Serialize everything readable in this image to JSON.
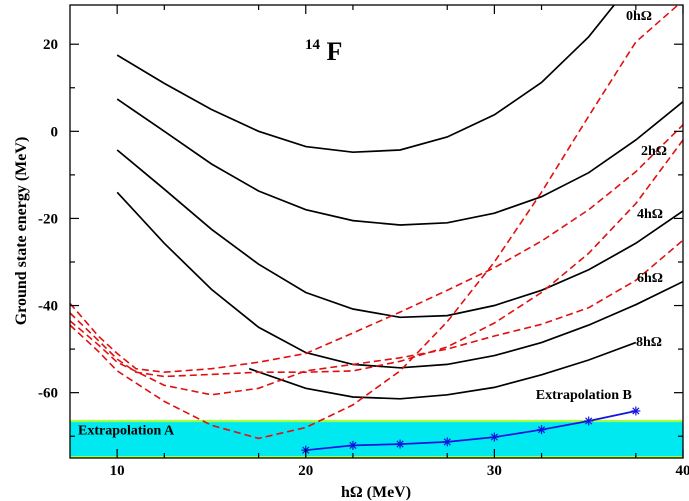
{
  "chart_data": {
    "type": "line",
    "title": "",
    "nucleus": {
      "mass_number": "14",
      "symbol": "F"
    },
    "xlabel": "hΩ (MeV)",
    "ylabel": "Ground state energy (MeV)",
    "xlim": [
      7.5,
      40
    ],
    "ylim": [
      -75,
      29
    ],
    "x_ticks": [
      10,
      20,
      30,
      40
    ],
    "y_ticks": [
      -60,
      -40,
      -20,
      0,
      20
    ],
    "tick_labels_x": [
      "10",
      "20",
      "30",
      "40"
    ],
    "tick_labels_y": [
      "-60",
      "-40",
      "-20",
      "0",
      "20"
    ],
    "band": {
      "label": "Extrapolation A",
      "y_low": -74.8,
      "y_high": -66.5,
      "fill_color": "#00e8f0",
      "edge_color": "#a0ff40"
    },
    "series": [
      {
        "name": "0hΩ",
        "style": "solid",
        "color": "#000000",
        "x": [
          10,
          12.5,
          15,
          17.5,
          20,
          22.5,
          25,
          27.5,
          30,
          32.5,
          35,
          37.5
        ],
        "y": [
          17.5,
          11,
          5,
          0,
          -3.5,
          -4.8,
          -4.3,
          -1.3,
          3.8,
          11.2,
          21.7,
          35.2
        ]
      },
      {
        "name": "2hΩ",
        "style": "solid",
        "color": "#000000",
        "x": [
          10,
          12.5,
          15,
          17.5,
          20,
          22.5,
          25,
          27.5,
          30,
          32.5,
          35,
          37.5,
          40
        ],
        "y": [
          7.4,
          0,
          -7.5,
          -13.7,
          -18,
          -20.5,
          -21.5,
          -21,
          -18.8,
          -15,
          -9.5,
          -2,
          6.8
        ]
      },
      {
        "name": "4hΩ",
        "style": "solid",
        "color": "#000000",
        "x": [
          10,
          12.5,
          15,
          17.5,
          20,
          22.5,
          25,
          27.5,
          30,
          32.5,
          35,
          37.5,
          40
        ],
        "y": [
          -4.3,
          -13.3,
          -22.5,
          -30.5,
          -37,
          -40.8,
          -42.7,
          -42.3,
          -40,
          -36.5,
          -31.8,
          -25.7,
          -18.3
        ]
      },
      {
        "name": "6hΩ",
        "style": "solid",
        "color": "#000000",
        "x": [
          10,
          12.5,
          15,
          17.5,
          20,
          22.5,
          25,
          27.5,
          30,
          32.5,
          35,
          37.5,
          40
        ],
        "y": [
          -14,
          -25.7,
          -36.3,
          -45,
          -50.8,
          -53.5,
          -54.3,
          -53.5,
          -51.5,
          -48.5,
          -44.5,
          -39.8,
          -34.5
        ]
      },
      {
        "name": "8hΩ",
        "style": "solid",
        "color": "#000000",
        "x": [
          17,
          20,
          22.5,
          25,
          27.5,
          30,
          32.5,
          35,
          37.5
        ],
        "y": [
          -54.5,
          -59,
          -61,
          -61.4,
          -60.5,
          -58.8,
          -55.9,
          -52.5,
          -48.5
        ]
      },
      {
        "name": "",
        "style": "dashed",
        "color": "#e01010",
        "x": [
          7.5,
          9,
          10,
          11,
          12.5,
          15,
          17.5,
          20,
          22.5,
          25,
          27.5,
          30,
          32.5,
          35,
          37.5,
          40
        ],
        "y": [
          -39.5,
          -47,
          -51,
          -54.5,
          -55.3,
          -54.5,
          -53,
          -51,
          -46.3,
          -41.5,
          -36.5,
          -31.3,
          -25.2,
          -18,
          -9.3,
          1.5
        ]
      },
      {
        "name": "",
        "style": "dashed",
        "color": "#e01010",
        "x": [
          7.5,
          9,
          10,
          11,
          12.5,
          15,
          17.5,
          20,
          22.5,
          25,
          27.5,
          30,
          32.5,
          35,
          37.5,
          40
        ],
        "y": [
          -41.7,
          -48,
          -52.3,
          -55.3,
          -56.3,
          -55.8,
          -55.3,
          -55.3,
          -55,
          -52.8,
          -49.5,
          -44,
          -37,
          -28,
          -16.6,
          -2
        ]
      },
      {
        "name": "",
        "style": "dashed",
        "color": "#e01010",
        "x": [
          7.5,
          9,
          10,
          12.5,
          15,
          17.5,
          20,
          22.5,
          25,
          27.5,
          30,
          32.5,
          35,
          37.5,
          40
        ],
        "y": [
          -43.5,
          -49,
          -53,
          -58.3,
          -60.5,
          -59,
          -55,
          -53.5,
          -52,
          -50,
          -47,
          -44.3,
          -40.5,
          -34.2,
          -25
        ]
      },
      {
        "name": "",
        "style": "dashed",
        "color": "#e01010",
        "x": [
          7.5,
          9,
          10,
          12.5,
          15,
          17.5,
          20,
          22.5,
          25,
          27.5,
          30,
          32.5,
          35,
          37.5,
          40
        ],
        "y": [
          -44.5,
          -50.5,
          -55,
          -62,
          -67.5,
          -70.5,
          -68,
          -62.8,
          -55,
          -43.7,
          -30,
          -14,
          3.5,
          20.5,
          30
        ]
      },
      {
        "name": "Extrapolation B",
        "style": "solid-markers",
        "color": "#1414e0",
        "marker": "asterisk",
        "x": [
          20,
          22.5,
          25,
          27.5,
          30,
          32.5,
          35,
          37.5
        ],
        "y": [
          -73.2,
          -72.1,
          -71.8,
          -71.3,
          -70.2,
          -68.5,
          -66.5,
          -64.2
        ]
      }
    ]
  }
}
